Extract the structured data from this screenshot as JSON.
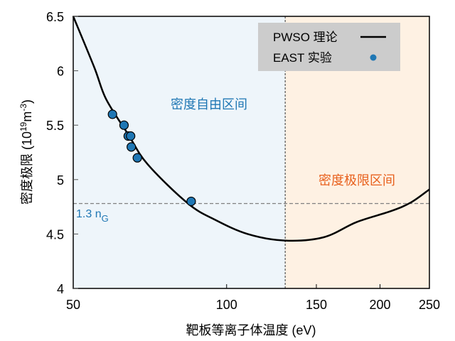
{
  "chart_data": {
    "type": "line",
    "xlabel": "靶板等离子体温度 (eV)",
    "ylabel_main": "密度极限 (10",
    "ylabel_sup1": "19",
    "ylabel_mid": "m",
    "ylabel_sup2": "-3",
    "ylabel_end": ")",
    "xscale": "log",
    "xlim": [
      50,
      250
    ],
    "ylim": [
      4,
      6.5
    ],
    "xticks": [
      50,
      100,
      150,
      200,
      250
    ],
    "xtick_labels": [
      "50",
      "100",
      "150",
      "200",
      "250"
    ],
    "yticks": [
      4,
      4.5,
      5,
      5.5,
      6,
      6.5
    ],
    "ytick_labels": [
      "4",
      "4.5",
      "5",
      "5.5",
      "6",
      "6.5"
    ],
    "grid": false,
    "legend": {
      "placement": "top-right",
      "entries": [
        "PWSO 理论",
        "EAST 实验"
      ]
    },
    "series": [
      {
        "name": "PWSO 理论",
        "kind": "line",
        "color": "#000000",
        "x": [
          50,
          55,
          58,
          64,
          70,
          84,
          95,
          110,
          130,
          155,
          180,
          210,
          230,
          250
        ],
        "y": [
          6.5,
          6.03,
          5.74,
          5.42,
          5.14,
          4.78,
          4.63,
          4.5,
          4.44,
          4.47,
          4.61,
          4.71,
          4.79,
          4.91
        ]
      },
      {
        "name": "EAST 实验",
        "kind": "scatter",
        "color": "#1f77b4",
        "x": [
          59.7,
          62.9,
          64.1,
          64.8,
          65.0,
          66.8,
          85.2
        ],
        "y": [
          5.6,
          5.5,
          5.4,
          5.4,
          5.3,
          5.2,
          4.8
        ]
      }
    ],
    "reference_lines": {
      "horizontal": {
        "y": 4.78,
        "label_main": "1.3 n",
        "label_sub": "G",
        "color": "#808080"
      },
      "vertical": {
        "x": 130.3,
        "color": "#555555"
      }
    },
    "regions": [
      {
        "label": "密度自由区间",
        "x": [
          50,
          130.3
        ],
        "fill": "#eef5fa",
        "label_color": "#1f77b4"
      },
      {
        "label": "密度极限区间",
        "x": [
          130.3,
          250
        ],
        "fill": "#fef1e3",
        "label_color": "#e8601c"
      }
    ]
  }
}
